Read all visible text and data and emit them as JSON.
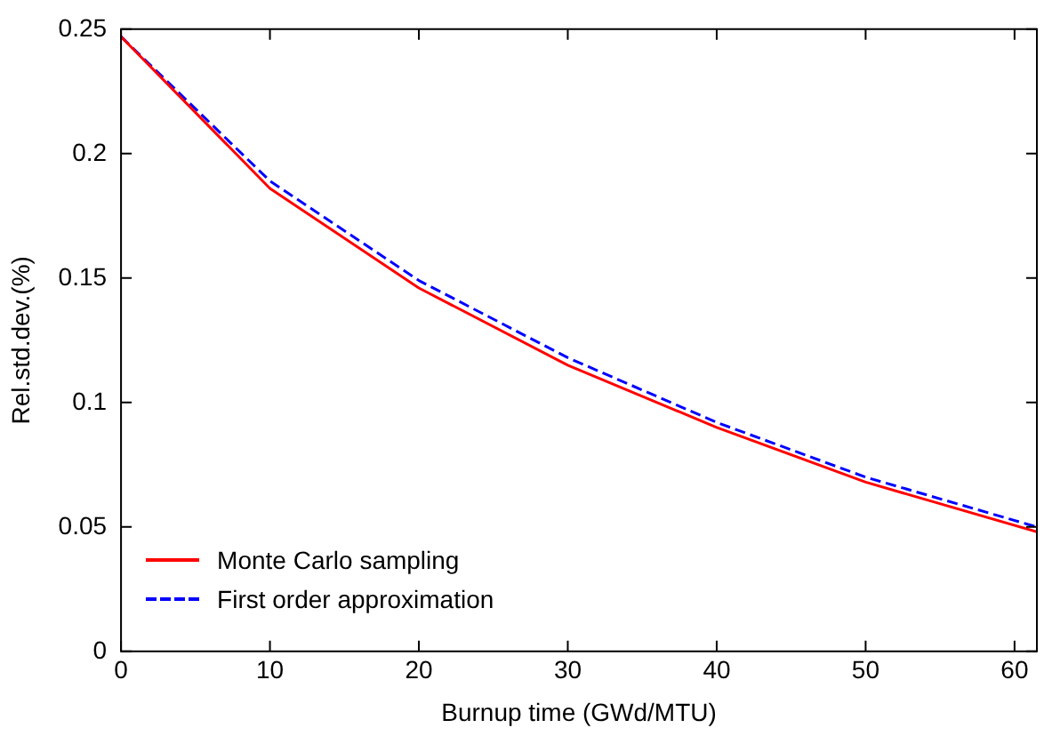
{
  "chart_data": {
    "type": "line",
    "xlabel": "Burnup time (GWd/MTU)",
    "ylabel": "Rel.std.dev.(%)",
    "x": [
      0,
      10,
      20,
      30,
      40,
      50,
      61.5
    ],
    "series": [
      {
        "name": "Monte Carlo sampling",
        "color": "#ff0000",
        "values": [
          0.247,
          0.186,
          0.146,
          0.115,
          0.09,
          0.068,
          0.048
        ],
        "line_style": "solid"
      },
      {
        "name": "First order approximation",
        "color": "#0000ff",
        "values": [
          0.247,
          0.189,
          0.149,
          0.118,
          0.092,
          0.07,
          0.05
        ],
        "line_style": "dashed"
      }
    ],
    "xlim": [
      0,
      61.5
    ],
    "xticks": [
      0,
      10,
      20,
      30,
      40,
      50,
      60
    ],
    "ylim": [
      0,
      0.25
    ],
    "yticks": [
      0,
      0.05,
      0.1,
      0.15,
      0.2,
      0.25
    ],
    "grid": false,
    "legend": "bottom left",
    "marker": "none"
  }
}
